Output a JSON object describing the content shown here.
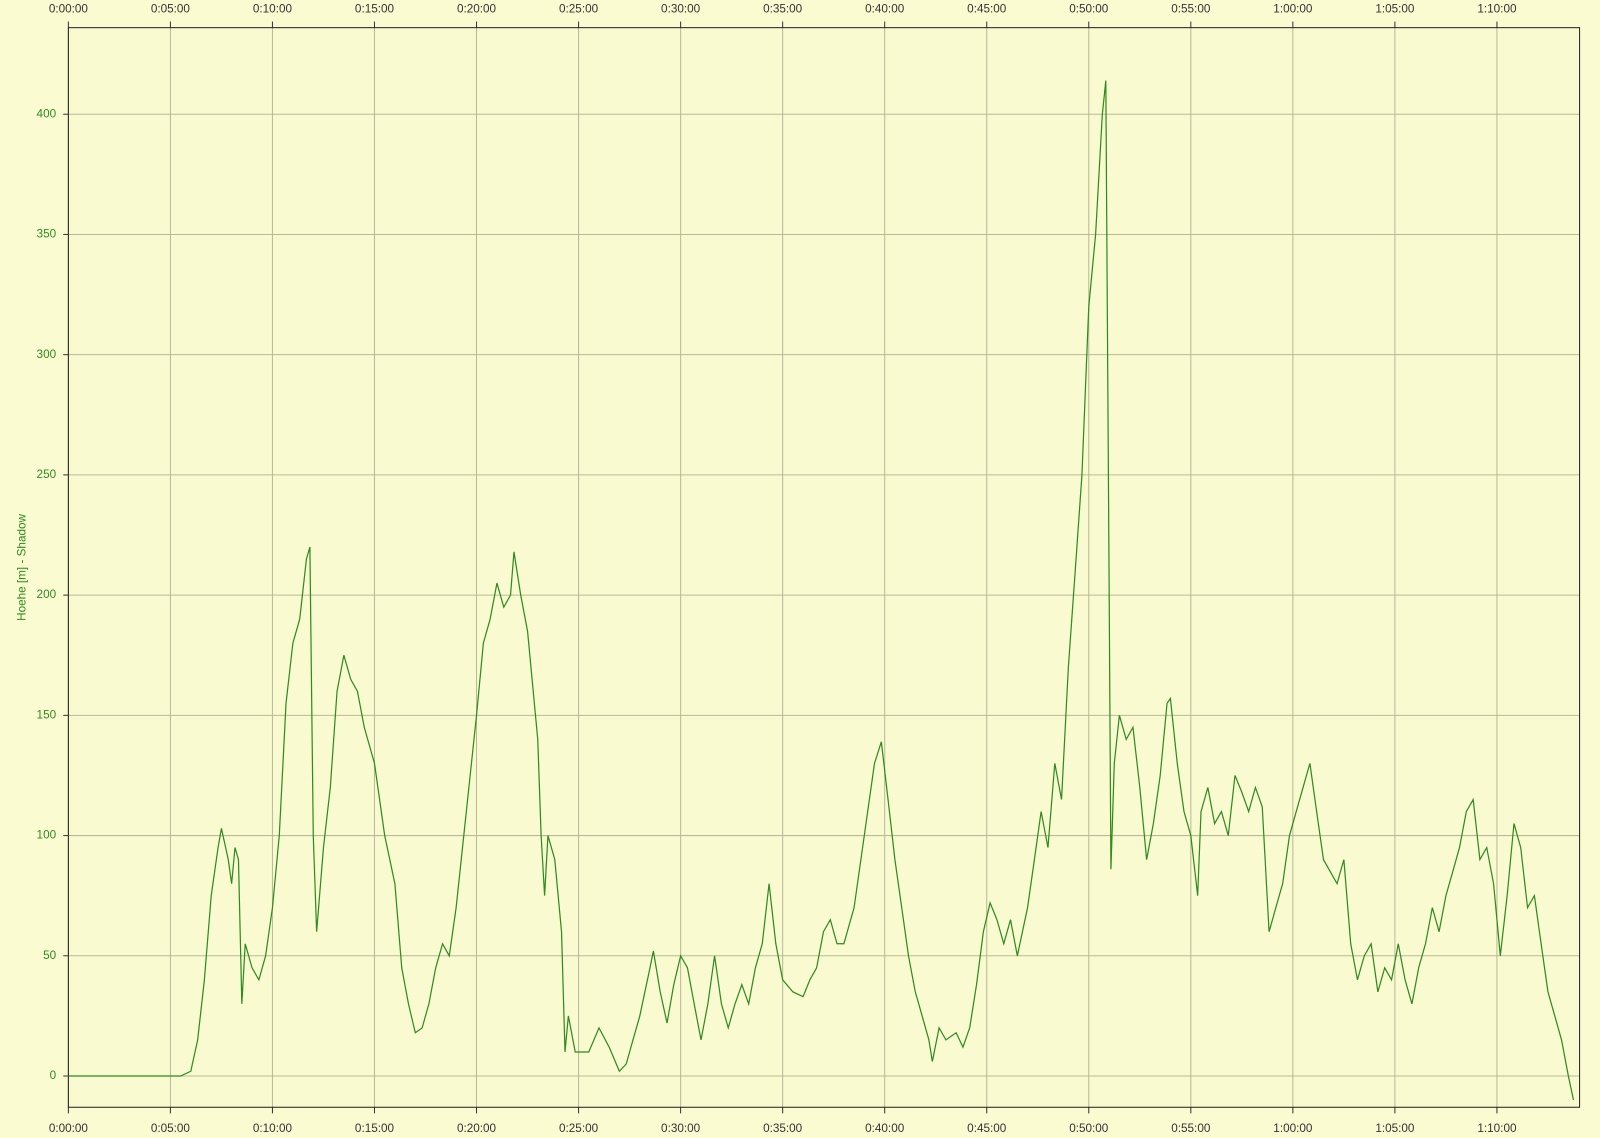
{
  "chart_data": {
    "type": "line",
    "y_label": "Hoehe [m] - Shadow",
    "x": [
      0,
      300,
      330,
      360,
      380,
      400,
      420,
      440,
      450,
      470,
      480,
      490,
      500,
      510,
      520,
      540,
      560,
      580,
      600,
      620,
      640,
      660,
      680,
      700,
      710,
      720,
      730,
      750,
      770,
      790,
      810,
      830,
      850,
      870,
      900,
      930,
      960,
      980,
      1000,
      1020,
      1040,
      1060,
      1080,
      1100,
      1120,
      1140,
      1170,
      1200,
      1220,
      1240,
      1260,
      1280,
      1300,
      1310,
      1330,
      1350,
      1380,
      1390,
      1400,
      1410,
      1430,
      1450,
      1460,
      1470,
      1490,
      1510,
      1530,
      1560,
      1590,
      1620,
      1640,
      1660,
      1680,
      1710,
      1720,
      1740,
      1760,
      1780,
      1800,
      1820,
      1840,
      1860,
      1880,
      1900,
      1920,
      1940,
      1960,
      1980,
      2000,
      2020,
      2040,
      2060,
      2080,
      2100,
      2130,
      2160,
      2180,
      2200,
      2220,
      2240,
      2260,
      2280,
      2310,
      2340,
      2370,
      2390,
      2410,
      2430,
      2450,
      2470,
      2490,
      2510,
      2530,
      2540,
      2560,
      2580,
      2610,
      2630,
      2650,
      2670,
      2690,
      2710,
      2730,
      2750,
      2770,
      2790,
      2820,
      2840,
      2860,
      2880,
      2900,
      2920,
      2940,
      2960,
      2980,
      3000,
      3020,
      3040,
      3050,
      3060,
      3065,
      3075,
      3090,
      3110,
      3130,
      3150,
      3170,
      3190,
      3210,
      3230,
      3240,
      3260,
      3280,
      3300,
      3320,
      3330,
      3350,
      3370,
      3390,
      3410,
      3430,
      3450,
      3470,
      3490,
      3510,
      3530,
      3550,
      3570,
      3590,
      3610,
      3630,
      3650,
      3670,
      3690,
      3710,
      3730,
      3750,
      3770,
      3790,
      3810,
      3830,
      3850,
      3870,
      3890,
      3910,
      3930,
      3950,
      3970,
      3990,
      4010,
      4030,
      4050,
      4070,
      4090,
      4110,
      4130,
      4150,
      4170,
      4190,
      4210,
      4230,
      4250,
      4270,
      4290,
      4310,
      4330,
      4350,
      4370,
      4390,
      4410,
      4425
    ],
    "series": [
      {
        "color": "#2e8b1e",
        "values": [
          0,
          0,
          0,
          2,
          15,
          40,
          75,
          95,
          103,
          90,
          80,
          95,
          90,
          30,
          55,
          45,
          40,
          50,
          70,
          100,
          155,
          180,
          190,
          215,
          220,
          100,
          60,
          95,
          120,
          160,
          175,
          165,
          160,
          145,
          130,
          100,
          80,
          45,
          30,
          18,
          20,
          30,
          45,
          55,
          50,
          70,
          110,
          150,
          180,
          190,
          205,
          195,
          200,
          218,
          200,
          185,
          140,
          100,
          75,
          100,
          90,
          60,
          10,
          25,
          10,
          10,
          10,
          20,
          12,
          2,
          5,
          15,
          25,
          45,
          52,
          35,
          22,
          38,
          50,
          45,
          30,
          15,
          30,
          50,
          30,
          20,
          30,
          38,
          30,
          45,
          55,
          80,
          55,
          40,
          35,
          33,
          40,
          45,
          60,
          65,
          55,
          55,
          70,
          100,
          130,
          139,
          115,
          90,
          70,
          50,
          35,
          25,
          15,
          6,
          20,
          15,
          18,
          12,
          20,
          38,
          60,
          72,
          65,
          55,
          65,
          50,
          70,
          90,
          110,
          95,
          130,
          115,
          170,
          210,
          250,
          320,
          350,
          400,
          414,
          200,
          86,
          130,
          150,
          140,
          145,
          120,
          90,
          105,
          125,
          155,
          157,
          130,
          110,
          100,
          75,
          110,
          120,
          105,
          110,
          100,
          125,
          118,
          110,
          120,
          112,
          60,
          70,
          80,
          100,
          110,
          120,
          130,
          110,
          90,
          85,
          80,
          90,
          55,
          40,
          50,
          55,
          35,
          45,
          40,
          55,
          40,
          30,
          45,
          55,
          70,
          60,
          75,
          85,
          95,
          110,
          115,
          90,
          95,
          80,
          50,
          75,
          105,
          95,
          70,
          75,
          55,
          35,
          25,
          15,
          0,
          -10
        ]
      }
    ],
    "xlim": [
      0,
      4443
    ],
    "ylim": [
      -13,
      436
    ],
    "xticks": [
      {
        "value": 0,
        "label": "0:00:00"
      },
      {
        "value": 300,
        "label": "0:05:00"
      },
      {
        "value": 600,
        "label": "0:10:00"
      },
      {
        "value": 900,
        "label": "0:15:00"
      },
      {
        "value": 1200,
        "label": "0:20:00"
      },
      {
        "value": 1500,
        "label": "0:25:00"
      },
      {
        "value": 1800,
        "label": "0:30:00"
      },
      {
        "value": 2100,
        "label": "0:35:00"
      },
      {
        "value": 2400,
        "label": "0:40:00"
      },
      {
        "value": 2700,
        "label": "0:45:00"
      },
      {
        "value": 3000,
        "label": "0:50:00"
      },
      {
        "value": 3300,
        "label": "0:55:00"
      },
      {
        "value": 3600,
        "label": "1:00:00"
      },
      {
        "value": 3900,
        "label": "1:05:00"
      },
      {
        "value": 4200,
        "label": "1:10:00"
      }
    ],
    "yticks": [
      0,
      50,
      100,
      150,
      200,
      250,
      300,
      350,
      400
    ],
    "grid": true
  }
}
